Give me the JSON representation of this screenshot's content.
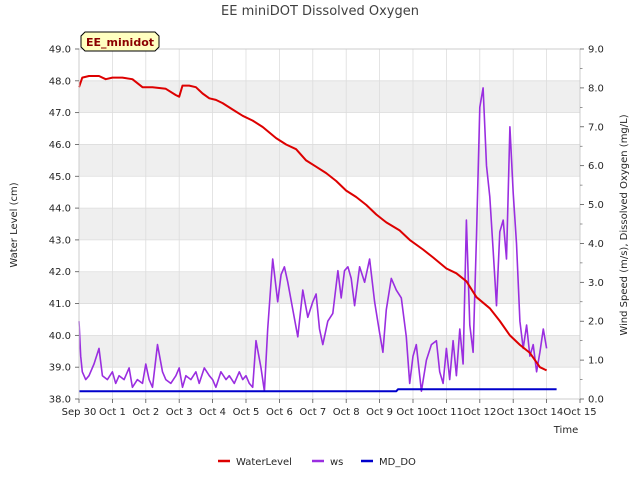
{
  "chart_data": {
    "type": "line",
    "title": "EE miniDOT Dissolved Oxygen",
    "badge": "EE_minidot",
    "xlabel": "Time",
    "ylabel_left": "Water Level (cm)",
    "ylabel_right": "Wind Speed (m/s), Dissolved Oxygen (mg/L)",
    "x_tick_labels": [
      "Sep 30",
      "Oct 1",
      "Oct 2",
      "Oct 3",
      "Oct 4",
      "Oct 5",
      "Oct 6",
      "Oct 7",
      "Oct 8",
      "Oct 9",
      "Oct 10",
      "Oct 11",
      "Oct 12",
      "Oct 13",
      "Oct 14",
      "Oct 15"
    ],
    "xlim_days": [
      0,
      15
    ],
    "ylim_left": [
      38.0,
      49.0
    ],
    "ylim_right": [
      0.0,
      9.0
    ],
    "y_left_ticks": [
      "38.0",
      "39.0",
      "40.0",
      "41.0",
      "42.0",
      "43.0",
      "44.0",
      "45.0",
      "46.0",
      "47.0",
      "48.0",
      "49.0"
    ],
    "y_right_ticks": [
      "0.0",
      "1.0",
      "2.0",
      "3.0",
      "4.0",
      "5.0",
      "6.0",
      "7.0",
      "8.0",
      "9.0"
    ],
    "grid": true,
    "legend_position": "bottom",
    "colors": {
      "WaterLevel": "#dd0000",
      "ws": "#9a2ee0",
      "MD_DO": "#0000cc",
      "band": "#efefef",
      "badge_bg": "#ffffc0"
    },
    "series": [
      {
        "name": "WaterLevel",
        "axis": "left",
        "x": [
          0.0,
          0.1,
          0.3,
          0.6,
          0.8,
          1.0,
          1.3,
          1.6,
          1.9,
          2.2,
          2.6,
          2.9,
          3.0,
          3.1,
          3.3,
          3.5,
          3.7,
          3.9,
          4.1,
          4.3,
          4.6,
          4.9,
          5.2,
          5.5,
          5.9,
          6.2,
          6.5,
          6.8,
          7.1,
          7.4,
          7.7,
          8.0,
          8.3,
          8.6,
          8.9,
          9.2,
          9.6,
          9.9,
          10.3,
          10.6,
          11.0,
          11.3,
          11.6,
          11.9,
          12.3,
          12.6,
          12.9,
          13.2,
          13.5,
          13.8,
          14.0
        ],
        "y": [
          47.8,
          48.1,
          48.15,
          48.15,
          48.05,
          48.1,
          48.1,
          48.05,
          47.8,
          47.8,
          47.75,
          47.55,
          47.5,
          47.85,
          47.85,
          47.8,
          47.6,
          47.45,
          47.4,
          47.3,
          47.1,
          46.9,
          46.75,
          46.55,
          46.2,
          46.0,
          45.85,
          45.5,
          45.3,
          45.1,
          44.85,
          44.55,
          44.35,
          44.1,
          43.8,
          43.55,
          43.3,
          43.0,
          42.7,
          42.45,
          42.1,
          41.95,
          41.7,
          41.2,
          40.85,
          40.45,
          40.0,
          39.7,
          39.45,
          39.0,
          38.9
        ]
      },
      {
        "name": "ws",
        "axis": "right",
        "x": [
          0.0,
          0.05,
          0.1,
          0.2,
          0.3,
          0.45,
          0.6,
          0.7,
          0.85,
          1.0,
          1.1,
          1.2,
          1.35,
          1.5,
          1.6,
          1.75,
          1.9,
          2.0,
          2.1,
          2.2,
          2.35,
          2.5,
          2.6,
          2.75,
          2.9,
          3.0,
          3.1,
          3.2,
          3.35,
          3.5,
          3.6,
          3.75,
          3.9,
          4.0,
          4.1,
          4.25,
          4.4,
          4.5,
          4.65,
          4.8,
          4.9,
          5.0,
          5.1,
          5.2,
          5.3,
          5.45,
          5.55,
          5.65,
          5.8,
          5.95,
          6.05,
          6.15,
          6.25,
          6.4,
          6.55,
          6.7,
          6.85,
          7.0,
          7.1,
          7.2,
          7.3,
          7.45,
          7.6,
          7.75,
          7.85,
          7.95,
          8.05,
          8.15,
          8.25,
          8.4,
          8.55,
          8.7,
          8.85,
          9.0,
          9.1,
          9.2,
          9.35,
          9.5,
          9.65,
          9.8,
          9.9,
          10.0,
          10.1,
          10.25,
          10.4,
          10.55,
          10.7,
          10.8,
          10.9,
          11.0,
          11.1,
          11.2,
          11.3,
          11.4,
          11.5,
          11.6,
          11.7,
          11.8,
          11.9,
          12.0,
          12.1,
          12.2,
          12.3,
          12.4,
          12.5,
          12.6,
          12.7,
          12.8,
          12.9,
          13.0,
          13.1,
          13.2,
          13.3,
          13.4,
          13.5,
          13.6,
          13.7,
          13.8,
          13.9,
          14.0
        ],
        "y": [
          2.0,
          1.1,
          0.7,
          0.5,
          0.6,
          0.9,
          1.3,
          0.6,
          0.5,
          0.7,
          0.4,
          0.6,
          0.5,
          0.8,
          0.3,
          0.5,
          0.4,
          0.9,
          0.5,
          0.3,
          1.4,
          0.7,
          0.5,
          0.4,
          0.6,
          0.8,
          0.3,
          0.6,
          0.5,
          0.7,
          0.4,
          0.8,
          0.6,
          0.5,
          0.3,
          0.7,
          0.5,
          0.6,
          0.4,
          0.7,
          0.5,
          0.6,
          0.4,
          0.3,
          1.5,
          0.8,
          0.2,
          1.8,
          3.6,
          2.5,
          3.2,
          3.4,
          3.0,
          2.3,
          1.6,
          2.8,
          2.1,
          2.5,
          2.7,
          1.8,
          1.4,
          2.0,
          2.2,
          3.3,
          2.6,
          3.3,
          3.4,
          3.1,
          2.4,
          3.4,
          3.0,
          3.6,
          2.5,
          1.7,
          1.2,
          2.3,
          3.1,
          2.8,
          2.6,
          1.6,
          0.4,
          1.1,
          1.4,
          0.2,
          1.0,
          1.4,
          1.5,
          0.7,
          0.4,
          1.3,
          0.5,
          1.5,
          0.6,
          1.8,
          0.9,
          4.6,
          1.9,
          1.2,
          4.2,
          7.5,
          8.0,
          6.0,
          5.2,
          3.8,
          2.4,
          4.3,
          4.6,
          3.6,
          7.0,
          5.3,
          4.0,
          2.0,
          1.3,
          1.9,
          1.1,
          1.4,
          0.7,
          1.2,
          1.8,
          1.3
        ]
      },
      {
        "name": "MD_DO",
        "axis": "right",
        "x": [
          0.0,
          5.0,
          5.05,
          9.5,
          9.55,
          14.3
        ],
        "y": [
          0.2,
          0.2,
          0.2,
          0.2,
          0.25,
          0.25
        ]
      }
    ]
  }
}
